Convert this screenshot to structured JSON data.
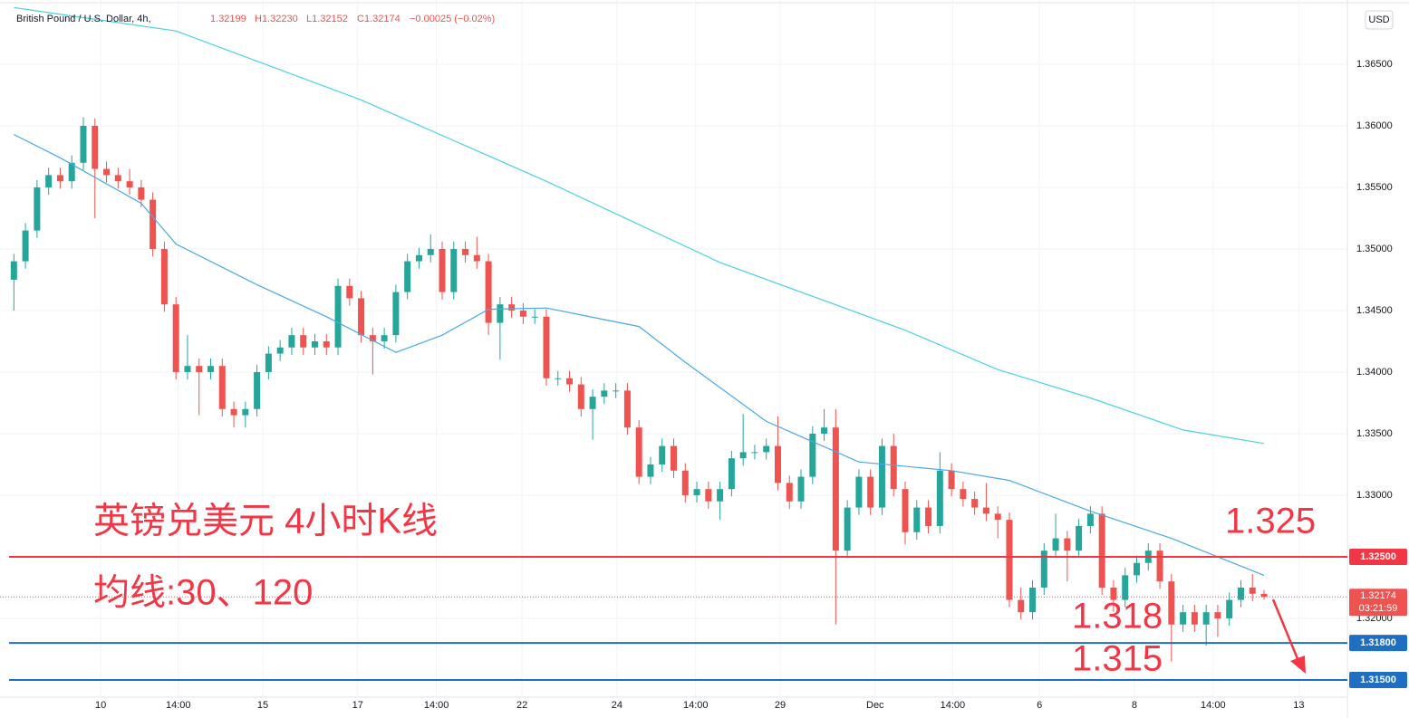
{
  "chart_data": {
    "type": "candlestick",
    "title": "British Pound / U.S. Dollar, 4h,",
    "header_values": [
      "1.32199",
      "H1.32230",
      "L1.32152",
      "C1.32174",
      "−0.00025 (−0.02%)"
    ],
    "currency": "USD",
    "annotations": [
      "英镑兑美元 4小时K线",
      "均线:30、120",
      "1.325",
      "1.318",
      "1.315"
    ],
    "up_color": "#26a69a",
    "down_color": "#ef5350",
    "xlim": [
      -1.2,
      115.2
    ],
    "ylim": [
      1.3136,
      1.36963
    ],
    "grid": true,
    "xticks": [
      {
        "value": 7.5,
        "label": "10"
      },
      {
        "value": 14.2,
        "label": "14:00"
      },
      {
        "value": 21.5,
        "label": "15"
      },
      {
        "value": 29.7,
        "label": "17"
      },
      {
        "value": 36.5,
        "label": "14:00"
      },
      {
        "value": 43.9,
        "label": "22"
      },
      {
        "value": 52.1,
        "label": "24"
      },
      {
        "value": 58.9,
        "label": "14:00"
      },
      {
        "value": 66.2,
        "label": "29"
      },
      {
        "value": 74.4,
        "label": "Dec"
      },
      {
        "value": 81.1,
        "label": "14:00"
      },
      {
        "value": 88.6,
        "label": "6"
      },
      {
        "value": 96.8,
        "label": "8"
      },
      {
        "value": 103.6,
        "label": "14:00"
      },
      {
        "value": 111,
        "label": "13"
      }
    ],
    "yticks": [
      {
        "value": 1.365,
        "label": "1.36500"
      },
      {
        "value": 1.36,
        "label": "1.36000"
      },
      {
        "value": 1.355,
        "label": "1.35500"
      },
      {
        "value": 1.35,
        "label": "1.35000"
      },
      {
        "value": 1.345,
        "label": "1.34500"
      },
      {
        "value": 1.34,
        "label": "1.34000"
      },
      {
        "value": 1.335,
        "label": "1.33500"
      },
      {
        "value": 1.33,
        "label": "1.33000"
      },
      {
        "value": 1.32,
        "label": "1.32000"
      }
    ],
    "ohlc": [
      [
        1.3475,
        1.3496,
        1.345,
        1.349
      ],
      [
        1.349,
        1.3521,
        1.3484,
        1.3515
      ],
      [
        1.3515,
        1.3556,
        1.3509,
        1.355
      ],
      [
        1.355,
        1.3566,
        1.3544,
        1.356
      ],
      [
        1.356,
        1.3566,
        1.3549,
        1.3555
      ],
      [
        1.3555,
        1.3576,
        1.3549,
        1.357
      ],
      [
        1.357,
        1.3607,
        1.3564,
        1.36
      ],
      [
        1.36,
        1.3606,
        1.3525,
        1.3565
      ],
      [
        1.3565,
        1.3571,
        1.3554,
        1.356
      ],
      [
        1.356,
        1.3566,
        1.3549,
        1.3555
      ],
      [
        1.3555,
        1.3565,
        1.3544,
        1.355
      ],
      [
        1.355,
        1.3556,
        1.3534,
        1.354
      ],
      [
        1.354,
        1.3546,
        1.3494,
        1.35
      ],
      [
        1.35,
        1.3506,
        1.3449,
        1.3455
      ],
      [
        1.3455,
        1.3461,
        1.3394,
        1.34
      ],
      [
        1.34,
        1.343,
        1.3394,
        1.3405
      ],
      [
        1.3405,
        1.3411,
        1.3365,
        1.34
      ],
      [
        1.34,
        1.3411,
        1.3394,
        1.3405
      ],
      [
        1.3405,
        1.3411,
        1.3364,
        1.337
      ],
      [
        1.337,
        1.3376,
        1.3355,
        1.3365
      ],
      [
        1.3365,
        1.3376,
        1.3355,
        1.337
      ],
      [
        1.337,
        1.3406,
        1.3364,
        1.34
      ],
      [
        1.34,
        1.3421,
        1.3394,
        1.3415
      ],
      [
        1.3415,
        1.3426,
        1.3409,
        1.342
      ],
      [
        1.342,
        1.3436,
        1.3414,
        1.343
      ],
      [
        1.343,
        1.3436,
        1.3414,
        1.342
      ],
      [
        1.342,
        1.3431,
        1.3414,
        1.3425
      ],
      [
        1.3425,
        1.3431,
        1.3414,
        1.342
      ],
      [
        1.342,
        1.3476,
        1.3414,
        1.347
      ],
      [
        1.347,
        1.3476,
        1.3454,
        1.346
      ],
      [
        1.346,
        1.3466,
        1.3424,
        1.343
      ],
      [
        1.343,
        1.3436,
        1.3398,
        1.3425
      ],
      [
        1.3425,
        1.3436,
        1.3419,
        1.343
      ],
      [
        1.343,
        1.3471,
        1.3424,
        1.3465
      ],
      [
        1.3465,
        1.3496,
        1.3459,
        1.349
      ],
      [
        1.349,
        1.3501,
        1.3484,
        1.3495
      ],
      [
        1.3495,
        1.3512,
        1.3489,
        1.35
      ],
      [
        1.35,
        1.3506,
        1.3459,
        1.3465
      ],
      [
        1.3465,
        1.3506,
        1.3459,
        1.35
      ],
      [
        1.35,
        1.3506,
        1.3489,
        1.3495
      ],
      [
        1.3495,
        1.351,
        1.3484,
        1.349
      ],
      [
        1.349,
        1.3496,
        1.343,
        1.344
      ],
      [
        1.344,
        1.3461,
        1.341,
        1.3455
      ],
      [
        1.3455,
        1.3461,
        1.3444,
        1.345
      ],
      [
        1.345,
        1.3456,
        1.3439,
        1.3445
      ],
      [
        1.3445,
        1.3451,
        1.3439,
        1.3445
      ],
      [
        1.3445,
        1.3451,
        1.3389,
        1.3395
      ],
      [
        1.3395,
        1.3401,
        1.3389,
        1.3395
      ],
      [
        1.3395,
        1.3401,
        1.3384,
        1.339
      ],
      [
        1.339,
        1.3396,
        1.3364,
        1.337
      ],
      [
        1.337,
        1.3386,
        1.3345,
        1.338
      ],
      [
        1.338,
        1.3391,
        1.3374,
        1.3385
      ],
      [
        1.3385,
        1.3391,
        1.3379,
        1.3385
      ],
      [
        1.3385,
        1.3391,
        1.3349,
        1.3355
      ],
      [
        1.3355,
        1.3361,
        1.3309,
        1.3315
      ],
      [
        1.3315,
        1.3331,
        1.3309,
        1.3325
      ],
      [
        1.3325,
        1.3346,
        1.3319,
        1.334
      ],
      [
        1.334,
        1.3346,
        1.3314,
        1.332
      ],
      [
        1.332,
        1.3326,
        1.3294,
        1.33
      ],
      [
        1.33,
        1.3311,
        1.3294,
        1.3305
      ],
      [
        1.3305,
        1.3311,
        1.3289,
        1.3295
      ],
      [
        1.3295,
        1.3311,
        1.328,
        1.3305
      ],
      [
        1.3305,
        1.3336,
        1.3299,
        1.333
      ],
      [
        1.333,
        1.3366,
        1.3324,
        1.3335
      ],
      [
        1.3335,
        1.3341,
        1.3329,
        1.3335
      ],
      [
        1.3335,
        1.3346,
        1.3329,
        1.334
      ],
      [
        1.334,
        1.3364,
        1.3304,
        1.331
      ],
      [
        1.331,
        1.3316,
        1.3289,
        1.3295
      ],
      [
        1.3295,
        1.3321,
        1.3289,
        1.3315
      ],
      [
        1.3315,
        1.3356,
        1.3309,
        1.335
      ],
      [
        1.335,
        1.337,
        1.3344,
        1.3355
      ],
      [
        1.3355,
        1.337,
        1.3195,
        1.3255
      ],
      [
        1.3255,
        1.3296,
        1.3249,
        1.329
      ],
      [
        1.329,
        1.3321,
        1.3284,
        1.3315
      ],
      [
        1.3315,
        1.3321,
        1.3284,
        1.329
      ],
      [
        1.329,
        1.3346,
        1.3284,
        1.334
      ],
      [
        1.334,
        1.335,
        1.3299,
        1.3305
      ],
      [
        1.3305,
        1.3311,
        1.326,
        1.327
      ],
      [
        1.327,
        1.3296,
        1.3264,
        1.329
      ],
      [
        1.329,
        1.3296,
        1.3269,
        1.3275
      ],
      [
        1.3275,
        1.3335,
        1.3269,
        1.332
      ],
      [
        1.332,
        1.3326,
        1.3299,
        1.3305
      ],
      [
        1.3305,
        1.3311,
        1.3291,
        1.3297
      ],
      [
        1.3297,
        1.3303,
        1.3284,
        1.329
      ],
      [
        1.329,
        1.331,
        1.3279,
        1.3285
      ],
      [
        1.3285,
        1.3291,
        1.3265,
        1.328
      ],
      [
        1.328,
        1.3286,
        1.3209,
        1.3215
      ],
      [
        1.3215,
        1.3225,
        1.3199,
        1.3205
      ],
      [
        1.3205,
        1.3231,
        1.3199,
        1.3225
      ],
      [
        1.3225,
        1.3261,
        1.3219,
        1.3255
      ],
      [
        1.3255,
        1.3285,
        1.3249,
        1.3265
      ],
      [
        1.3265,
        1.3271,
        1.323,
        1.3255
      ],
      [
        1.3255,
        1.3281,
        1.3249,
        1.3275
      ],
      [
        1.3275,
        1.3291,
        1.3269,
        1.3285
      ],
      [
        1.3285,
        1.3291,
        1.3219,
        1.3225
      ],
      [
        1.3225,
        1.3231,
        1.3205,
        1.3215
      ],
      [
        1.3215,
        1.3241,
        1.3209,
        1.3235
      ],
      [
        1.3235,
        1.3251,
        1.3229,
        1.3245
      ],
      [
        1.3245,
        1.3261,
        1.3239,
        1.3255
      ],
      [
        1.3255,
        1.3261,
        1.3224,
        1.323
      ],
      [
        1.323,
        1.3236,
        1.3165,
        1.3195
      ],
      [
        1.3195,
        1.3211,
        1.3189,
        1.3205
      ],
      [
        1.3205,
        1.3211,
        1.3189,
        1.3195
      ],
      [
        1.3195,
        1.3211,
        1.3178,
        1.3205
      ],
      [
        1.3205,
        1.3211,
        1.3185,
        1.32
      ],
      [
        1.32,
        1.3221,
        1.3194,
        1.3215
      ],
      [
        1.3215,
        1.3231,
        1.3209,
        1.3225
      ],
      [
        1.3225,
        1.3236,
        1.3214,
        1.322
      ],
      [
        1.32199,
        1.3223,
        1.32152,
        1.32174
      ]
    ],
    "lines": [
      {
        "color": "#4aa8e6",
        "x": [
          0,
          4,
          11,
          14,
          21,
          27,
          33,
          37,
          41,
          46,
          54,
          58,
          65,
          73,
          81,
          86,
          93,
          100,
          108
        ],
        "values": [
          1.3593,
          1.3574,
          1.3537,
          1.3504,
          1.3471,
          1.3445,
          1.3416,
          1.343,
          1.3451,
          1.3452,
          1.3437,
          1.3408,
          1.336,
          1.3327,
          1.332,
          1.3312,
          1.3287,
          1.3265,
          1.3235
        ]
      },
      {
        "color": "#4dd0e1",
        "x": [
          0,
          14,
          30,
          46,
          61,
          77,
          85,
          93,
          101,
          108
        ],
        "values": [
          1.3696,
          1.3677,
          1.3621,
          1.3555,
          1.3489,
          1.3434,
          1.3402,
          1.3379,
          1.3353,
          1.3342
        ]
      }
    ],
    "levels": [
      {
        "value": 1.325,
        "label": "1.32500",
        "color": "#f23645"
      },
      {
        "value": 1.318,
        "label": "1.31800",
        "color": "#1e6fc2"
      },
      {
        "value": 1.315,
        "label": "1.31500",
        "color": "#1e6fc2"
      }
    ],
    "last_price": {
      "value": 1.32174,
      "label": "1.32174"
    },
    "countdown": "03:21:59"
  }
}
